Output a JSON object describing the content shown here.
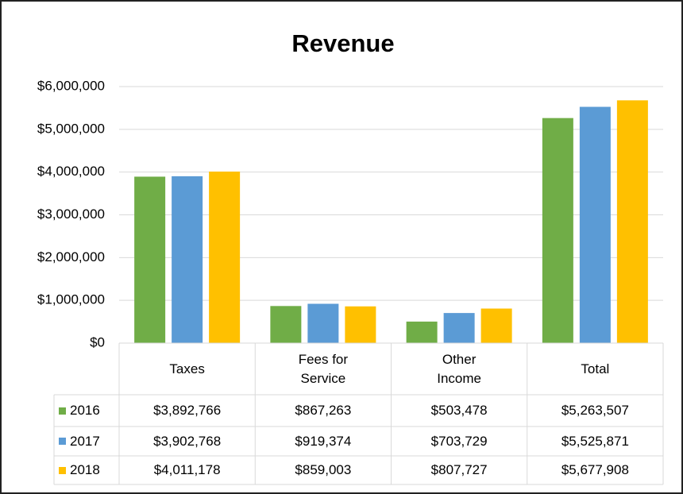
{
  "chart_data": {
    "type": "bar",
    "title": "Revenue",
    "categories": [
      "Taxes",
      "Fees for Service",
      "Other Income",
      "Total"
    ],
    "series": [
      {
        "name": "2016",
        "color": "#70ad47",
        "values": [
          3892766,
          867263,
          503478,
          5263507
        ],
        "value_labels": [
          "$3,892,766",
          "$867,263",
          "$503,478",
          "$5,263,507"
        ]
      },
      {
        "name": "2017",
        "color": "#5b9bd5",
        "values": [
          3902768,
          919374,
          703729,
          5525871
        ],
        "value_labels": [
          "$3,902,768",
          "$919,374",
          "$703,729",
          "$5,525,871"
        ]
      },
      {
        "name": "2018",
        "color": "#ffc000",
        "values": [
          4011178,
          859003,
          807727,
          5677908
        ],
        "value_labels": [
          "$4,011,178",
          "$859,003",
          "$807,727",
          "$5,677,908"
        ]
      }
    ],
    "ylim": [
      0,
      6000000
    ],
    "yticks": [
      {
        "value": 0,
        "label": "$0"
      },
      {
        "value": 1000000,
        "label": "$1,000,000"
      },
      {
        "value": 2000000,
        "label": "$2,000,000"
      },
      {
        "value": 3000000,
        "label": "$3,000,000"
      },
      {
        "value": 4000000,
        "label": "$4,000,000"
      },
      {
        "value": 5000000,
        "label": "$5,000,000"
      },
      {
        "value": 6000000,
        "label": "$6,000,000"
      }
    ],
    "grid": true
  }
}
